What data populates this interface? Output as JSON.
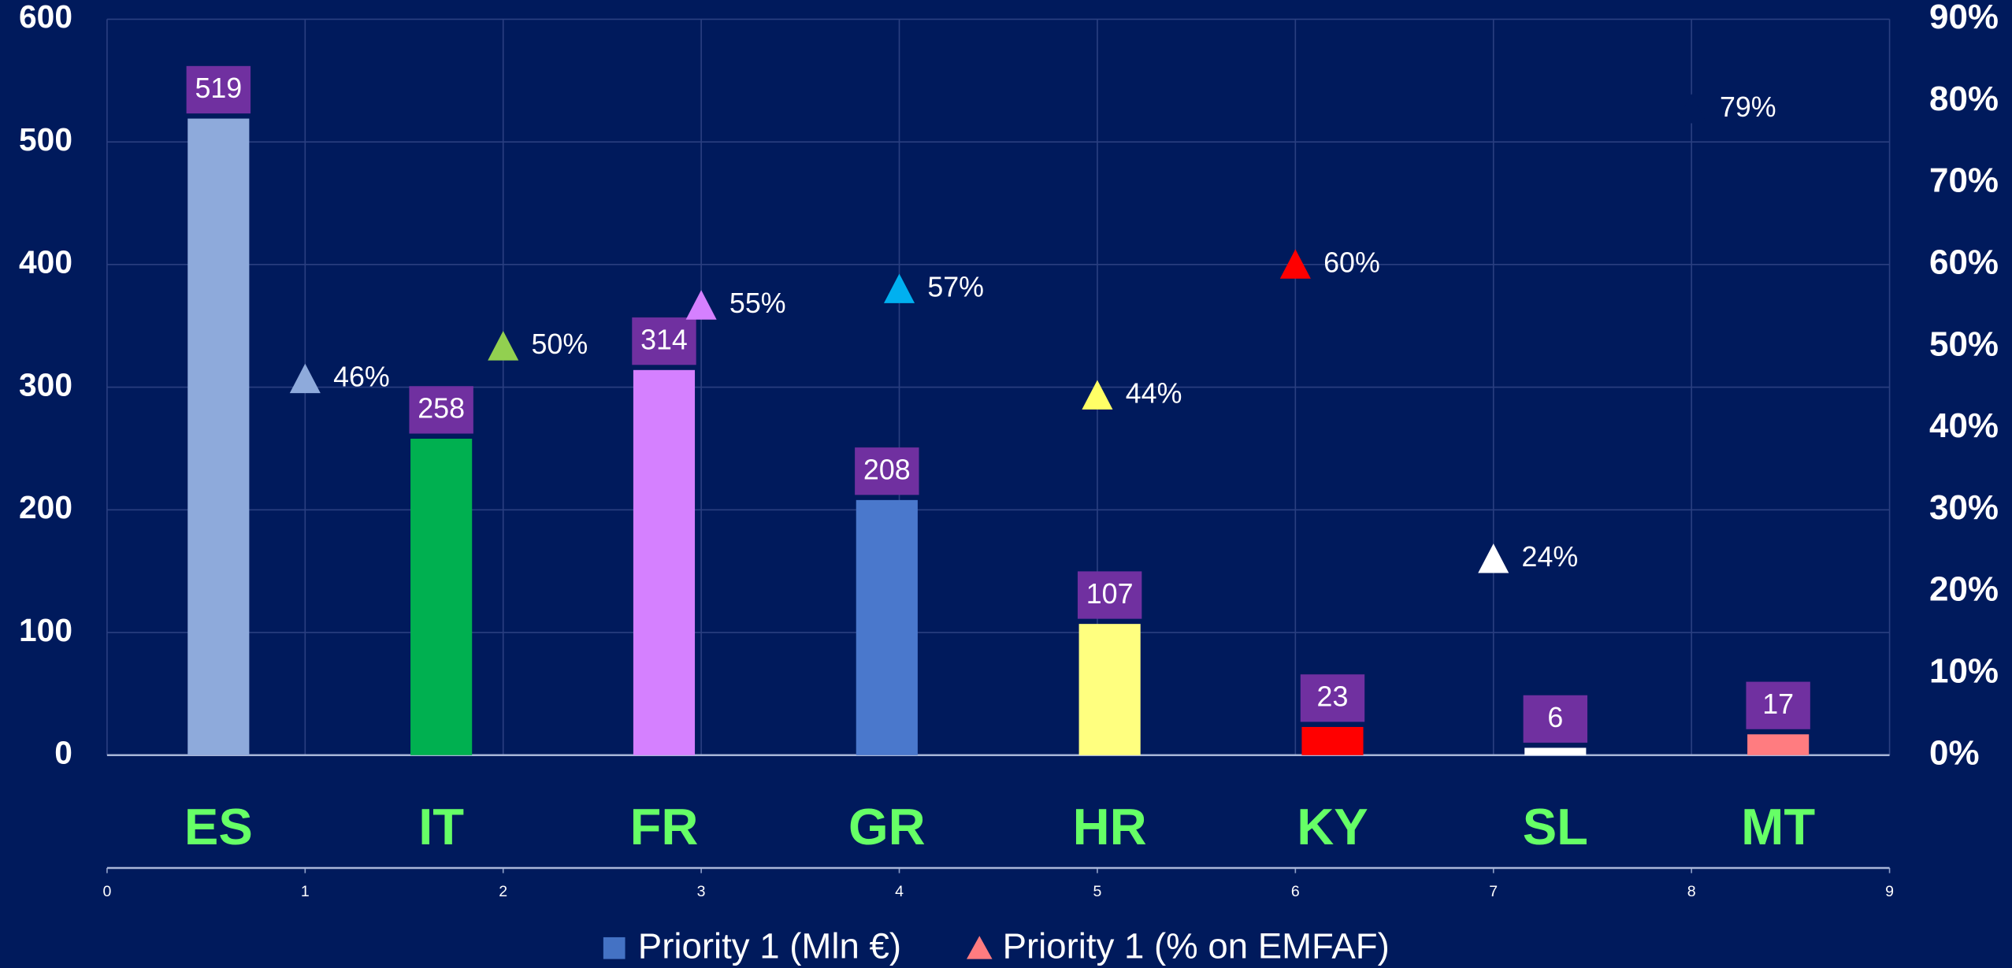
{
  "chart_data": {
    "type": "bar",
    "categories": [
      "ES",
      "IT",
      "FR",
      "GR",
      "HR",
      "KY",
      "SL",
      "MT"
    ],
    "series": [
      {
        "name": "Priority 1 (Mln €)",
        "type": "bar",
        "color": "#4472c4",
        "colors": [
          "#8eaadb",
          "#00b050",
          "#d580ff",
          "#4a78cc",
          "#ffff7f",
          "#ff0000",
          "#ffffff",
          "#ff7c80"
        ],
        "values": [
          519,
          258,
          314,
          208,
          107,
          23,
          6,
          17
        ]
      },
      {
        "name": "Priority 1 (% on EMFAF)",
        "type": "scatter",
        "axis": "y2",
        "color": "#ff7c80",
        "colors": [
          "#8eaadb",
          "#92d050",
          "#d580ff",
          "#00b0f0",
          "#ffff66",
          "#ff0000",
          "#ffffff",
          "#001a5c"
        ],
        "x": [
          1,
          2,
          3,
          4,
          5,
          6,
          7,
          8
        ],
        "values": [
          46,
          50,
          55,
          57,
          44,
          60,
          24,
          79
        ],
        "value_labels": [
          "46%",
          "50%",
          "55%",
          "57%",
          "44%",
          "60%",
          "24%",
          "79%"
        ]
      }
    ],
    "ylim": [
      0,
      600
    ],
    "yticks": [
      0,
      100,
      200,
      300,
      400,
      500,
      600
    ],
    "y2lim": [
      0,
      90
    ],
    "y2ticks": [
      {
        "value": 0,
        "label": "0%"
      },
      {
        "value": 10,
        "label": "10%"
      },
      {
        "value": 20,
        "label": "20%"
      },
      {
        "value": 30,
        "label": "30%"
      },
      {
        "value": 40,
        "label": "40%"
      },
      {
        "value": 50,
        "label": "50%"
      },
      {
        "value": 60,
        "label": "60%"
      },
      {
        "value": 70,
        "label": "70%"
      },
      {
        "value": 80,
        "label": "80%"
      },
      {
        "value": 90,
        "label": "90%"
      }
    ],
    "xlim": [
      0,
      9
    ],
    "xticks": [
      0,
      1,
      2,
      3,
      4,
      5,
      6,
      7,
      8,
      9
    ],
    "grid": true
  }
}
